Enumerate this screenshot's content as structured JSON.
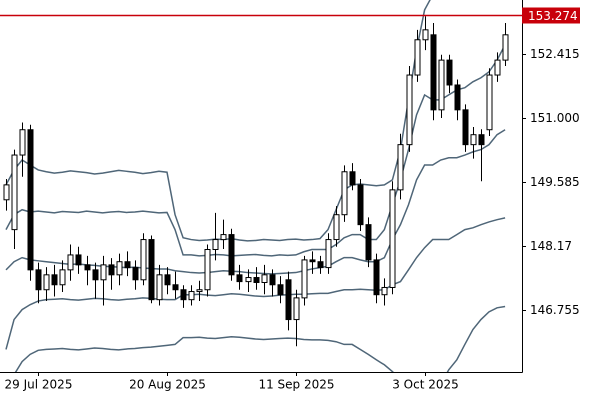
{
  "chart_data": {
    "type": "candlestick",
    "categories": [
      null,
      null,
      null,
      null,
      "29 Jul 2025",
      null,
      null,
      null,
      null,
      null,
      null,
      null,
      null,
      null,
      null,
      null,
      null,
      null,
      null,
      null,
      "20 Aug 2025",
      null,
      null,
      null,
      null,
      null,
      null,
      null,
      null,
      null,
      null,
      null,
      null,
      null,
      null,
      null,
      "11 Sep 2025",
      null,
      null,
      null,
      null,
      null,
      null,
      null,
      null,
      null,
      null,
      null,
      null,
      null,
      null,
      null,
      "3 Oct 2025",
      null,
      null,
      null,
      null,
      null,
      null,
      null,
      null,
      null,
      null
    ],
    "open": [
      149.19,
      148.53,
      150.18,
      150.74,
      147.64,
      147.2,
      147.53,
      147.31,
      147.64,
      147.97,
      147.75,
      147.64,
      147.42,
      147.75,
      147.53,
      147.82,
      147.69,
      147.42,
      148.31,
      146.98,
      147.53,
      147.31,
      147.2,
      146.98,
      147.16,
      147.2,
      148.09,
      148.31,
      148.42,
      147.53,
      147.38,
      147.47,
      147.36,
      147.53,
      147.31,
      147.42,
      146.54,
      147.02,
      147.86,
      147.82,
      147.69,
      148.31,
      148.86,
      149.81,
      149.52,
      148.64,
      147.86,
      147.09,
      147.25,
      149.41,
      150.41,
      151.95,
      152.73,
      152.84,
      151.18,
      152.28,
      151.73,
      151.18,
      150.41,
      150.63,
      150.74,
      151.95,
      152.28
    ],
    "high": [
      149.65,
      150.3,
      150.9,
      150.85,
      147.8,
      147.7,
      147.75,
      147.85,
      148.2,
      148.15,
      147.95,
      147.8,
      147.95,
      147.9,
      148.0,
      148.05,
      147.85,
      148.45,
      148.4,
      147.75,
      147.7,
      147.6,
      147.3,
      147.3,
      147.4,
      148.2,
      148.9,
      148.75,
      148.55,
      147.75,
      147.65,
      147.7,
      147.75,
      147.65,
      147.5,
      147.6,
      147.2,
      147.95,
      148.05,
      147.95,
      148.45,
      149.05,
      149.95,
      150.0,
      149.65,
      148.8,
      148.0,
      147.45,
      149.6,
      150.65,
      152.15,
      152.95,
      153.25,
      153.1,
      152.4,
      152.4,
      151.85,
      151.3,
      150.8,
      150.75,
      152.1,
      152.45,
      153.1
    ],
    "low": [
      148.95,
      148.1,
      149.7,
      147.4,
      146.9,
      146.95,
      147.05,
      147.15,
      147.4,
      147.55,
      147.3,
      147.0,
      146.85,
      147.2,
      147.3,
      147.5,
      147.2,
      147.3,
      146.9,
      146.85,
      147.1,
      147.0,
      146.8,
      146.85,
      146.95,
      147.05,
      147.85,
      148.1,
      147.4,
      147.2,
      147.15,
      147.2,
      147.1,
      147.05,
      146.9,
      146.3,
      145.95,
      146.85,
      147.55,
      147.55,
      147.55,
      148.15,
      148.7,
      149.4,
      148.5,
      147.7,
      146.9,
      146.85,
      147.1,
      149.2,
      150.25,
      151.8,
      152.5,
      150.95,
      151.0,
      151.55,
      150.95,
      150.25,
      150.1,
      149.6,
      150.6,
      151.8,
      152.15
    ],
    "close": [
      149.52,
      150.18,
      150.74,
      147.64,
      147.2,
      147.53,
      147.31,
      147.64,
      147.97,
      147.75,
      147.64,
      147.42,
      147.75,
      147.53,
      147.82,
      147.69,
      147.42,
      148.31,
      146.98,
      147.53,
      147.31,
      147.2,
      146.98,
      147.16,
      147.2,
      148.09,
      148.31,
      148.42,
      147.53,
      147.38,
      147.47,
      147.36,
      147.53,
      147.31,
      147.09,
      146.54,
      147.02,
      147.86,
      147.82,
      147.69,
      148.31,
      148.86,
      149.81,
      149.52,
      148.64,
      147.86,
      147.09,
      147.25,
      149.41,
      150.41,
      151.95,
      152.73,
      152.95,
      151.18,
      152.28,
      151.73,
      151.18,
      150.41,
      150.63,
      150.41,
      151.95,
      152.28,
      152.84
    ],
    "up_color": "#ffffff",
    "down_color": "#000000",
    "edge_color": "#000000",
    "bands": [
      {
        "color": "#4f6678",
        "values": [
          149.52,
          149.85,
          150.07,
          149.96,
          149.85,
          149.81,
          149.78,
          149.8,
          149.83,
          149.81,
          149.79,
          149.76,
          149.78,
          149.81,
          149.84,
          149.82,
          149.8,
          149.77,
          149.79,
          149.82,
          149.8,
          148.86,
          148.35,
          148.31,
          148.29,
          148.3,
          148.32,
          148.31,
          148.33,
          148.3,
          148.28,
          148.29,
          148.31,
          148.3,
          148.29,
          148.31,
          148.32,
          148.3,
          148.31,
          148.33,
          148.53,
          148.97,
          149.41,
          149.52,
          149.54,
          149.52,
          149.5,
          149.52,
          149.63,
          150.3,
          151.4,
          152.51,
          153.39,
          153.72,
          153.85,
          153.95,
          154.02,
          154.05,
          154.08,
          154.1,
          154.12,
          154.15,
          154.2
        ]
      },
      {
        "color": "#4f6678",
        "values": [
          148.53,
          148.86,
          148.97,
          148.92,
          148.94,
          148.92,
          148.9,
          148.93,
          148.92,
          148.91,
          148.94,
          148.92,
          148.9,
          148.92,
          148.93,
          148.91,
          148.92,
          148.94,
          148.92,
          148.9,
          148.91,
          148.53,
          147.97,
          147.97,
          147.95,
          147.96,
          147.98,
          147.97,
          147.95,
          147.96,
          147.97,
          147.98,
          147.96,
          147.95,
          147.97,
          147.96,
          147.97,
          148.04,
          148.09,
          148.09,
          148.09,
          148.2,
          148.35,
          148.42,
          148.42,
          148.31,
          148.31,
          148.53,
          149.08,
          149.63,
          150.3,
          151.07,
          151.51,
          151.4,
          151.4,
          151.51,
          151.62,
          151.67,
          151.8,
          151.89,
          152.02,
          152.28,
          152.62
        ]
      },
      {
        "color": "#4f6678",
        "values": [
          147.64,
          147.82,
          147.91,
          147.86,
          147.84,
          147.82,
          147.8,
          147.78,
          147.76,
          147.77,
          147.75,
          147.74,
          147.72,
          147.71,
          147.7,
          147.69,
          147.7,
          147.68,
          147.67,
          147.66,
          147.66,
          147.62,
          147.6,
          147.58,
          147.57,
          147.58,
          147.6,
          147.62,
          147.61,
          147.6,
          147.58,
          147.57,
          147.56,
          147.55,
          147.56,
          147.57,
          147.58,
          147.62,
          147.66,
          147.69,
          147.72,
          147.82,
          147.91,
          147.91,
          147.86,
          147.82,
          147.82,
          147.91,
          148.31,
          148.64,
          149.08,
          149.63,
          149.96,
          149.96,
          150.07,
          150.12,
          150.12,
          150.18,
          150.25,
          150.3,
          150.41,
          150.63,
          150.74
        ]
      },
      {
        "color": "#4f6678",
        "values": [
          145.88,
          146.54,
          146.76,
          146.87,
          146.95,
          146.98,
          146.99,
          147.0,
          146.98,
          146.97,
          146.99,
          147.01,
          147.0,
          146.98,
          146.97,
          146.99,
          147.0,
          147.02,
          147.01,
          146.99,
          146.98,
          146.98,
          147.09,
          147.09,
          147.1,
          147.08,
          147.07,
          147.09,
          147.11,
          147.1,
          147.08,
          147.06,
          147.05,
          147.06,
          147.08,
          147.09,
          147.1,
          147.1,
          147.11,
          147.12,
          147.12,
          147.16,
          147.2,
          147.2,
          147.21,
          147.2,
          147.19,
          147.2,
          147.31,
          147.38,
          147.64,
          147.91,
          148.13,
          148.31,
          148.31,
          148.31,
          148.42,
          148.53,
          148.57,
          148.64,
          148.7,
          148.75,
          148.79
        ]
      },
      {
        "color": "#4f6678",
        "values": [
          145.1,
          145.32,
          145.61,
          145.77,
          145.86,
          145.88,
          145.89,
          145.9,
          145.88,
          145.87,
          145.89,
          145.91,
          145.9,
          145.88,
          145.87,
          145.89,
          145.9,
          145.92,
          145.93,
          145.95,
          145.97,
          145.99,
          146.14,
          146.14,
          146.15,
          146.13,
          146.12,
          146.14,
          146.16,
          146.15,
          146.13,
          146.11,
          146.1,
          146.11,
          146.12,
          146.13,
          146.12,
          146.1,
          146.09,
          146.09,
          146.08,
          146.05,
          145.99,
          145.99,
          145.88,
          145.77,
          145.65,
          145.54,
          145.39,
          145.21,
          144.99,
          144.88,
          144.77,
          144.88,
          145.1,
          145.43,
          145.65,
          145.99,
          146.32,
          146.54,
          146.71,
          146.8,
          146.83
        ]
      }
    ],
    "price_line": {
      "value": 153.274,
      "color": "#c8000a"
    },
    "ylim": [
      145.38,
      153.61
    ],
    "yticks": [
      146.755,
      148.17,
      149.585,
      {
        "value": 151,
        "label": "151.000"
      },
      152.415
    ]
  }
}
